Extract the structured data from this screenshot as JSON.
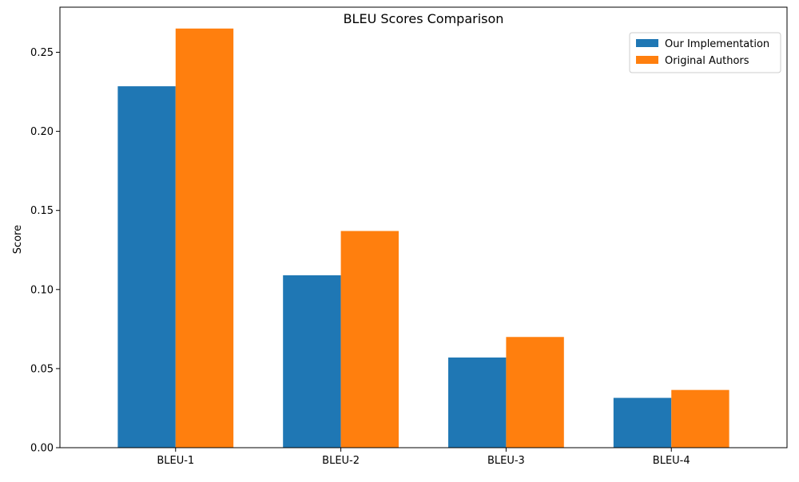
{
  "chart_data": {
    "type": "bar",
    "title": "BLEU Scores Comparison",
    "xlabel": "",
    "ylabel": "Score",
    "categories": [
      "BLEU-1",
      "BLEU-2",
      "BLEU-3",
      "BLEU-4"
    ],
    "series": [
      {
        "name": "Our Implementation",
        "color": "#1f77b4",
        "values": [
          0.2285,
          0.109,
          0.057,
          0.0315
        ]
      },
      {
        "name": "Original Authors",
        "color": "#ff7f0e",
        "values": [
          0.265,
          0.137,
          0.07,
          0.0365
        ]
      }
    ],
    "ylim": [
      0,
      0.2785
    ],
    "yticks": [
      0.0,
      0.05,
      0.1,
      0.15,
      0.2,
      0.25
    ],
    "ytick_labels": [
      "0.00",
      "0.05",
      "0.10",
      "0.15",
      "0.20",
      "0.25"
    ],
    "legend_position": "top-right",
    "grid": false
  }
}
